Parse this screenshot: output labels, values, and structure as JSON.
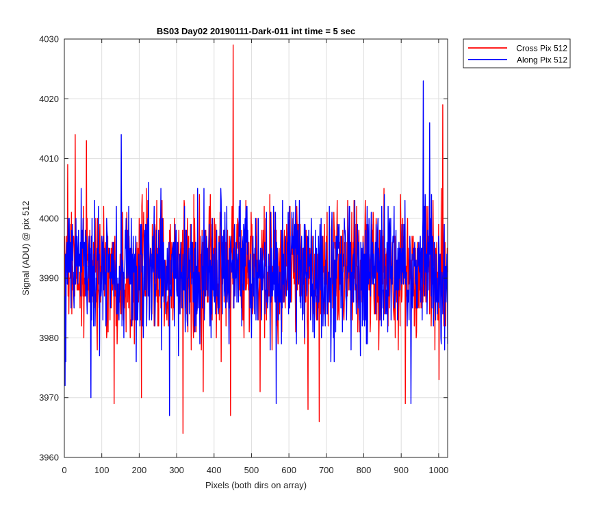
{
  "chart_data": {
    "type": "line",
    "title": "BS03 Day02 20190111-Dark-011 int time = 5 sec",
    "xlabel": "Pixels (both dirs on array)",
    "ylabel": "Signal (ADU) @ pix 512",
    "xlim": [
      0,
      1024
    ],
    "ylim": [
      3960,
      4030
    ],
    "xticks": [
      0,
      100,
      200,
      300,
      400,
      500,
      600,
      700,
      800,
      900,
      1000
    ],
    "yticks": [
      3960,
      3970,
      3980,
      3990,
      4000,
      4010,
      4020,
      4030
    ],
    "grid": true,
    "legend": {
      "position": "outside-top-right"
    },
    "noise_model": {
      "n_points": 1024,
      "mean": 3991,
      "typical_range": [
        3976,
        4006
      ]
    },
    "series": [
      {
        "name": "Cross Pix 512",
        "color": "#ff0000",
        "mean": 3991,
        "anchor_points": [
          {
            "x": 2,
            "y": 3988
          },
          {
            "x": 8,
            "y": 4009
          },
          {
            "x": 28,
            "y": 4014
          },
          {
            "x": 58,
            "y": 4013
          },
          {
            "x": 132,
            "y": 3969
          },
          {
            "x": 205,
            "y": 3970
          },
          {
            "x": 316,
            "y": 3964
          },
          {
            "x": 370,
            "y": 3971
          },
          {
            "x": 443,
            "y": 3967
          },
          {
            "x": 450,
            "y": 4029
          },
          {
            "x": 522,
            "y": 3971
          },
          {
            "x": 650,
            "y": 3968
          },
          {
            "x": 680,
            "y": 3966
          },
          {
            "x": 910,
            "y": 3969
          },
          {
            "x": 1000,
            "y": 3973
          },
          {
            "x": 1010,
            "y": 4019
          }
        ]
      },
      {
        "name": "Along Pix 512",
        "color": "#0000ff",
        "mean": 3991,
        "anchor_points": [
          {
            "x": 1,
            "y": 3972
          },
          {
            "x": 70,
            "y": 3970
          },
          {
            "x": 151,
            "y": 4014
          },
          {
            "x": 280,
            "y": 3967
          },
          {
            "x": 565,
            "y": 3969
          },
          {
            "x": 925,
            "y": 3969
          },
          {
            "x": 958,
            "y": 4023
          },
          {
            "x": 975,
            "y": 4016
          }
        ]
      }
    ]
  }
}
